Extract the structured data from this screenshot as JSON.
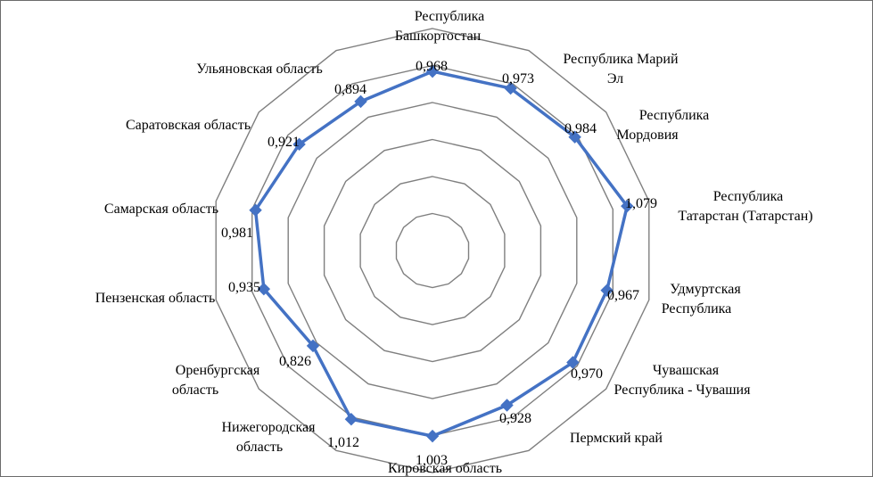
{
  "chart_data": {
    "type": "radar",
    "title": "",
    "grid": true,
    "legend": "none",
    "rmax": 1.2,
    "rings": 6,
    "series_color": "#4472C4",
    "grid_color": "#7f7f7f",
    "categories": [
      "Республика Башкортостан",
      "Республика Марий Эл",
      "Республика Мордовия",
      "Республика Татарстан (Татарстан)",
      "Удмуртская Республика",
      "Чувашская Республика - Чувашия",
      "Пермский край",
      "Кировская область",
      "Нижегородская область",
      "Оренбургская область",
      "Пензенская область",
      "Самарская область",
      "Саратовская область",
      "Ульяновская область"
    ],
    "category_label_lines": [
      [
        "Республика",
        "Башкортостан"
      ],
      [
        "Республика Марий",
        "Эл"
      ],
      [
        "Республика",
        "Мордовия"
      ],
      [
        "Республика",
        "Татарстан (Татарстан)"
      ],
      [
        "Удмуртская",
        "Республика"
      ],
      [
        "Чувашская",
        "Республика - Чувашия"
      ],
      [
        "Пермский край"
      ],
      [
        "Кировская область"
      ],
      [
        "Нижегородская",
        "область"
      ],
      [
        "Оренбургская",
        "область"
      ],
      [
        "Пензенская область"
      ],
      [
        "Самарская область"
      ],
      [
        "Саратовская область"
      ],
      [
        "Ульяновская область"
      ]
    ],
    "values": [
      0.968,
      0.973,
      0.984,
      1.079,
      0.967,
      0.97,
      0.928,
      1.003,
      1.012,
      0.826,
      0.935,
      0.981,
      0.921,
      0.894
    ],
    "value_labels": [
      "0,968",
      "0,973",
      "0,984",
      "1,079",
      "0,967",
      "0,970",
      "0,928",
      "1,003",
      "1,012",
      "0,826",
      "0,935",
      "0,981",
      "0,921",
      "0,894"
    ]
  }
}
